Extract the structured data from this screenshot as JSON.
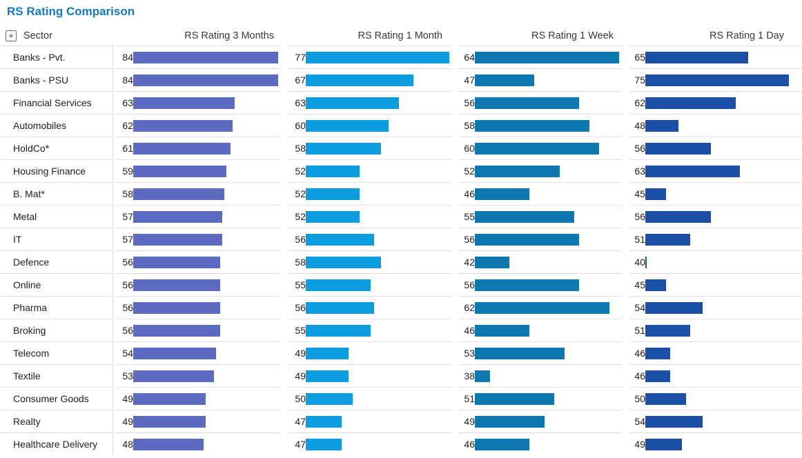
{
  "ui": {
    "title": "RS Rating Comparison",
    "sector_header": "Sector",
    "expand_icon_glyph": "+",
    "title_color": "#1279c0",
    "border_color": "#e0e0e0"
  },
  "chart_data": {
    "type": "bar",
    "orientation": "horizontal",
    "title": "RS Rating Comparison",
    "grid": false,
    "legend": false,
    "value_labels": true,
    "categories": [
      "Banks - Pvt.",
      "Banks - PSU",
      "Financial Services",
      "Automobiles",
      "HoldCo*",
      "Housing Finance",
      "B. Mat*",
      "Metal",
      "IT",
      "Defence",
      "Online",
      "Pharma",
      "Broking",
      "Telecom",
      "Textile",
      "Consumer Goods",
      "Realty",
      "Healthcare Delivery"
    ],
    "series": [
      {
        "name": "RS Rating 3 Months",
        "color": "#5C6BC0",
        "axis_range": [
          14,
          84
        ],
        "values": [
          84,
          84,
          63,
          62,
          61,
          59,
          58,
          57,
          57,
          56,
          56,
          56,
          56,
          54,
          53,
          49,
          49,
          48
        ]
      },
      {
        "name": "RS Rating 1 Month",
        "color": "#0D9DDE",
        "axis_range": [
          37,
          77
        ],
        "values": [
          77,
          67,
          63,
          60,
          58,
          52,
          52,
          52,
          56,
          58,
          55,
          56,
          55,
          49,
          49,
          50,
          47,
          47
        ]
      },
      {
        "name": "RS Rating 1 Week",
        "color": "#0F78B1",
        "axis_range": [
          35,
          64
        ],
        "values": [
          64,
          47,
          56,
          58,
          60,
          52,
          46,
          55,
          56,
          42,
          56,
          62,
          46,
          53,
          38,
          51,
          49,
          46
        ]
      },
      {
        "name": "RS Rating 1 Day",
        "color": "#1B4FA5",
        "axis_range": [
          40,
          75
        ],
        "values": [
          65,
          75,
          62,
          48,
          56,
          63,
          45,
          56,
          51,
          40,
          45,
          54,
          51,
          46,
          46,
          50,
          54,
          49
        ]
      }
    ]
  }
}
